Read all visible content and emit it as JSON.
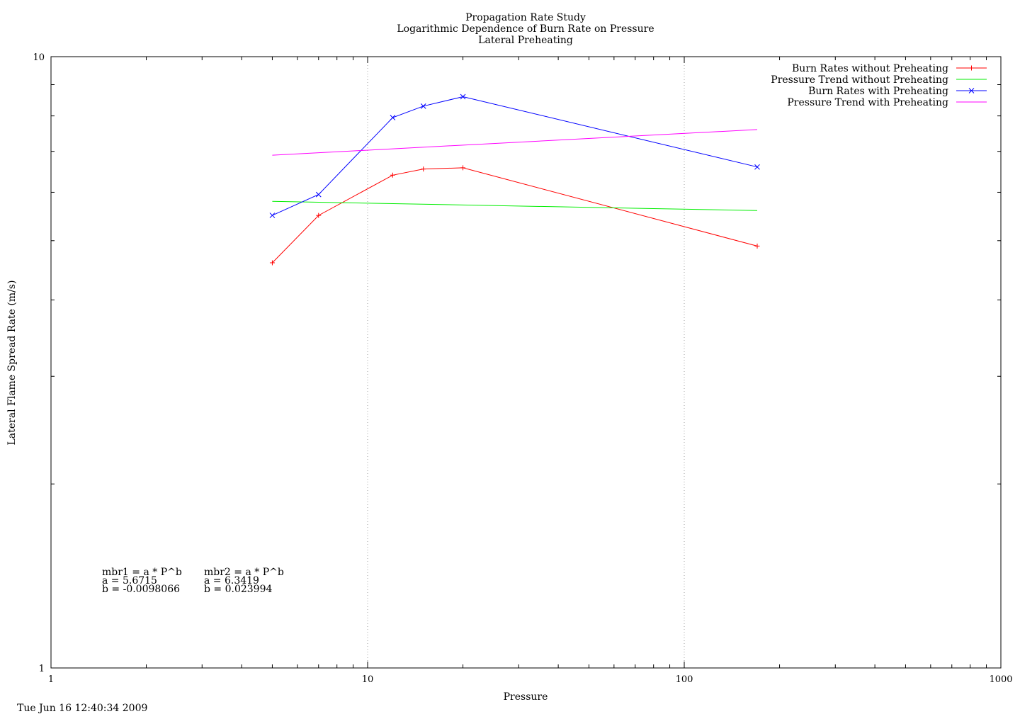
{
  "chart_data": {
    "type": "line",
    "title": [
      "Propagation Rate Study",
      "Logarithmic Dependence of Burn Rate on Pressure",
      "Lateral Preheating"
    ],
    "xlabel": "Pressure",
    "ylabel": "Lateral Flame Spread Rate (m/s)",
    "x_scale": "log",
    "y_scale": "log",
    "xlim": [
      1,
      1000
    ],
    "ylim": [
      1,
      10
    ],
    "x_ticks": [
      {
        "value": 1,
        "label": "1"
      },
      {
        "value": 10,
        "label": "10"
      },
      {
        "value": 100,
        "label": "100"
      },
      {
        "value": 1000,
        "label": "1000"
      }
    ],
    "y_ticks": [
      {
        "value": 1,
        "label": "1"
      },
      {
        "value": 10,
        "label": "10"
      }
    ],
    "grid": "vertical dotted lines at major x ticks",
    "legend_position": "top-right",
    "series": [
      {
        "name": "Burn Rates without Preheating",
        "color": "#ff0000",
        "marker": "plus",
        "x": [
          5,
          7,
          12,
          15,
          20,
          170
        ],
        "y": [
          4.6,
          5.5,
          6.4,
          6.55,
          6.58,
          4.9
        ]
      },
      {
        "name": "Pressure Trend without Preheating",
        "color": "#00ee00",
        "marker": "none",
        "x": [
          5,
          170
        ],
        "y": [
          5.8,
          5.6
        ]
      },
      {
        "name": "Burn Rates with Preheating",
        "color": "#0000ff",
        "marker": "cross",
        "x": [
          5,
          7,
          12,
          15,
          20,
          170
        ],
        "y": [
          5.5,
          5.95,
          7.95,
          8.3,
          8.6,
          6.6
        ]
      },
      {
        "name": "Pressure Trend with Preheating",
        "color": "#ff00ff",
        "marker": "none",
        "x": [
          5,
          170
        ],
        "y": [
          6.9,
          7.6
        ]
      }
    ],
    "annotations": [
      [
        "mbr1 = a * P^b",
        "a = 5.6715",
        "b = -0.0098066"
      ],
      [
        "mbr2 = a * P^b",
        "a = 6.3419",
        "b = 0.023994"
      ]
    ]
  },
  "timestamp": "Tue Jun 16 12:40:34 2009"
}
